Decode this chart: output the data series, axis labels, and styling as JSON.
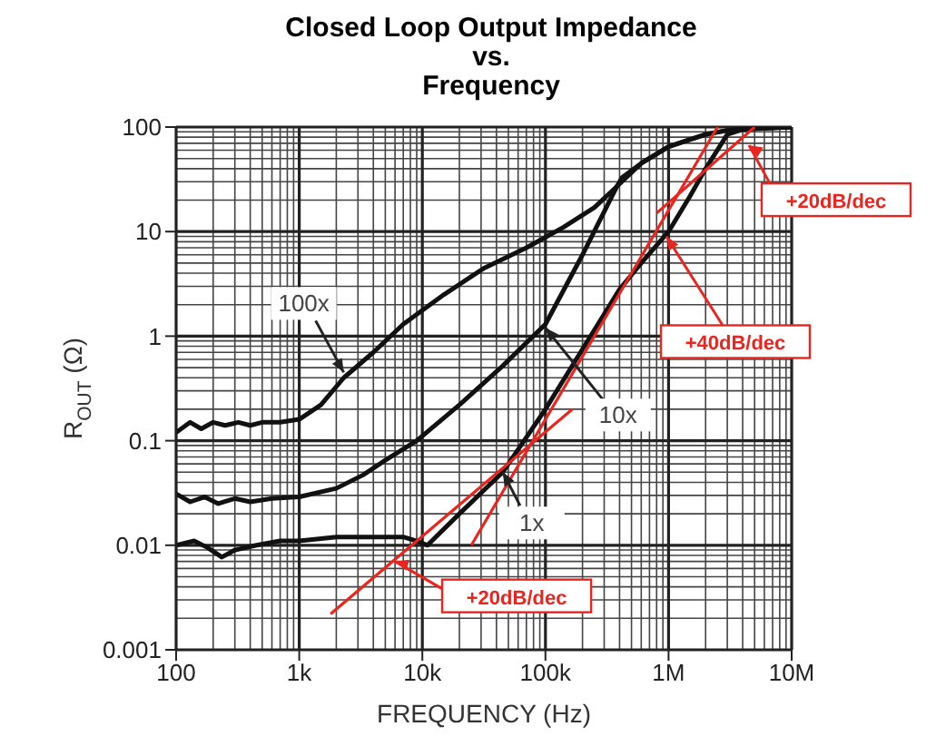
{
  "chart_data": {
    "type": "line",
    "title": "Closed Loop Output Impedance\nvs.\nFrequency",
    "xlabel": "FREQUENCY (Hz)",
    "ylabel": "R$_{OUT}$ (Ω)",
    "log": "xy",
    "grid": true,
    "marker": "none",
    "line_style": "solid",
    "xlim": [
      100,
      10000000
    ],
    "xticks": [
      {
        "value": 100,
        "label": "100"
      },
      {
        "value": 1000,
        "label": "1k"
      },
      {
        "value": 10000,
        "label": "10k"
      },
      {
        "value": 100000,
        "label": "100k"
      },
      {
        "value": 1000000,
        "label": "1M"
      },
      {
        "value": 10000000,
        "label": "10M"
      }
    ],
    "ylim": [
      0.001,
      100
    ],
    "yticks": [
      0.001,
      0.01,
      0.1,
      1,
      10,
      100
    ],
    "series": [
      {
        "color": "#111111",
        "x": [
          100,
          130,
          160,
          200,
          250,
          320,
          400,
          500,
          700,
          1000,
          1500,
          2300,
          4000,
          7000,
          15000,
          32000,
          70000,
          140000,
          250000,
          380000,
          420000,
          600000,
          1000000,
          2000000,
          3000000,
          5000000,
          10000000
        ],
        "values": [
          0.12,
          0.15,
          0.13,
          0.15,
          0.14,
          0.15,
          0.14,
          0.15,
          0.15,
          0.16,
          0.22,
          0.4,
          0.7,
          1.3,
          2.5,
          4.5,
          7,
          11,
          17,
          27,
          33,
          45,
          65,
          85,
          93,
          97,
          100
        ]
      },
      {
        "color": "#111111",
        "x": [
          100,
          130,
          170,
          220,
          300,
          400,
          600,
          1000,
          2000,
          3300,
          5000,
          9000,
          20000,
          45000,
          100000,
          200000,
          380000,
          600000,
          1000000,
          2000000,
          3000000,
          5000000,
          10000000
        ],
        "values": [
          0.031,
          0.026,
          0.029,
          0.025,
          0.028,
          0.026,
          0.028,
          0.029,
          0.035,
          0.047,
          0.065,
          0.1,
          0.22,
          0.52,
          1.3,
          6,
          27,
          45,
          65,
          85,
          93,
          97,
          100
        ]
      },
      {
        "color": "#111111",
        "x": [
          100,
          140,
          180,
          235,
          300,
          450,
          700,
          1000,
          2000,
          4000,
          7000,
          9000,
          11000,
          20000,
          45000,
          100000,
          200000,
          400000,
          600000,
          1000000,
          1500000,
          2000000,
          3000000,
          4000000,
          10000000
        ],
        "values": [
          0.01,
          0.011,
          0.0095,
          0.0077,
          0.009,
          0.01,
          0.011,
          0.011,
          0.012,
          0.012,
          0.012,
          0.011,
          0.01,
          0.02,
          0.05,
          0.2,
          0.75,
          2.8,
          5,
          10,
          22,
          40,
          85,
          95,
          100
        ]
      },
      {
        "color": "#e8251f",
        "x": [
          1800,
          165000
        ],
        "values": [
          0.0022,
          0.2
        ]
      },
      {
        "color": "#e8251f",
        "x": [
          25000,
          2500000
        ],
        "values": [
          0.01,
          100
        ]
      },
      {
        "color": "#e8251f",
        "x": [
          800000,
          5000000
        ],
        "values": [
          15,
          100
        ]
      }
    ],
    "annotations": [
      {
        "text": "100x",
        "x": 2300,
        "y": 0.45
      },
      {
        "text": "10x",
        "x": 100000,
        "y": 1.2
      },
      {
        "text": "1x",
        "x": 45000,
        "y": 0.05
      },
      {
        "text": "+20dB/dec",
        "x": 6000,
        "y": 0.007
      },
      {
        "text": "+40dB/dec",
        "x": 960000,
        "y": 9
      },
      {
        "text": "+20dB/dec",
        "x": 4500000,
        "y": 67
      }
    ]
  }
}
